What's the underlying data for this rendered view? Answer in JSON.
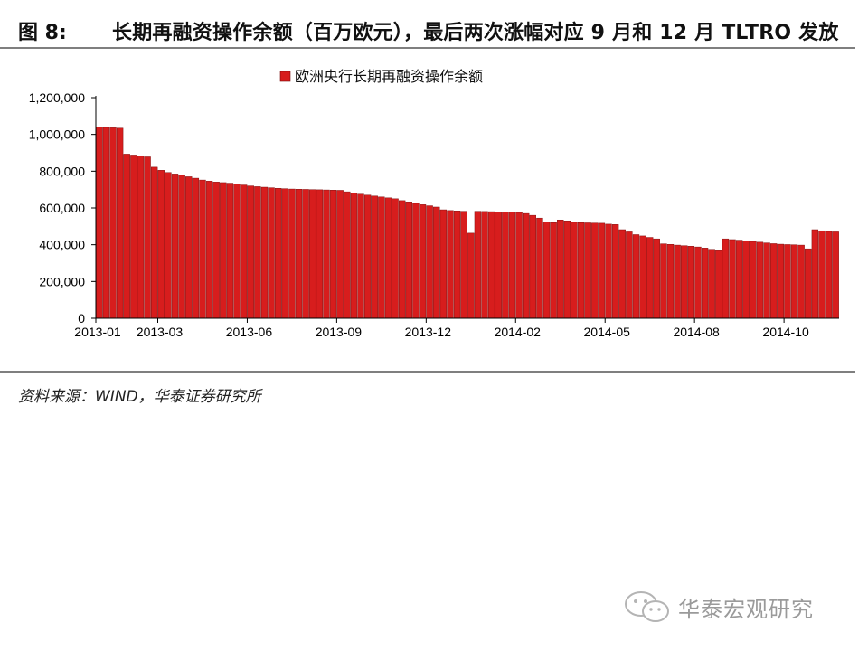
{
  "header": {
    "figure_label": "图 8:",
    "title": "长期再融资操作余额（百万欧元），最后两次涨幅对应 9 月和 12 月 TLTRO 发放"
  },
  "source_note": "资料来源：WIND，华泰证券研究所",
  "watermark": {
    "text": "华泰宏观研究",
    "icon": "wechat-icon"
  },
  "colors": {
    "bar": "#d71d1d",
    "bar_edge": "#7a0a0a",
    "axis": "#000000",
    "rule": "#7f7f7f"
  },
  "chart_data": {
    "type": "bar",
    "title": "",
    "xlabel": "",
    "ylabel": "",
    "legend": {
      "placement": "top-center"
    },
    "grid": false,
    "ylim": [
      0,
      1200000
    ],
    "yticks": [
      0,
      200000,
      400000,
      600000,
      800000,
      1000000,
      1200000
    ],
    "ytick_labels": [
      "0",
      "200,000",
      "400,000",
      "600,000",
      "800,000",
      "1,000,000",
      "1,200,000"
    ],
    "x_tick_labels": [
      {
        "label": "2013-01",
        "index": 0
      },
      {
        "label": "2013-03",
        "index": 9
      },
      {
        "label": "2013-06",
        "index": 22
      },
      {
        "label": "2013-09",
        "index": 35
      },
      {
        "label": "2013-12",
        "index": 48
      },
      {
        "label": "2014-02",
        "index": 61
      },
      {
        "label": "2014-05",
        "index": 74
      },
      {
        "label": "2014-08",
        "index": 87
      },
      {
        "label": "2014-10",
        "index": 100
      }
    ],
    "series": [
      {
        "name": "欧洲央行长期再融资操作余额",
        "values": [
          1040000,
          1038000,
          1036000,
          1034000,
          893000,
          888000,
          882000,
          878000,
          822000,
          805000,
          793000,
          785000,
          778000,
          770000,
          762000,
          752000,
          746000,
          741000,
          738000,
          735000,
          730000,
          725000,
          720000,
          716000,
          713000,
          710000,
          707000,
          705000,
          703000,
          702000,
          701000,
          700000,
          699000,
          698000,
          697000,
          696000,
          688000,
          680000,
          675000,
          670000,
          665000,
          660000,
          655000,
          650000,
          640000,
          633000,
          625000,
          618000,
          612000,
          605000,
          590000,
          586000,
          584000,
          582000,
          463000,
          582000,
          581000,
          580000,
          579000,
          578000,
          577000,
          575000,
          570000,
          560000,
          545000,
          525000,
          520000,
          535000,
          530000,
          522000,
          520000,
          519000,
          518000,
          517000,
          512000,
          510000,
          482000,
          470000,
          455000,
          448000,
          440000,
          432000,
          405000,
          402000,
          398000,
          395000,
          392000,
          388000,
          382000,
          375000,
          368000,
          432000,
          428000,
          425000,
          421000,
          418000,
          414000,
          410000,
          406000,
          403000,
          401000,
          400000,
          398000,
          378000,
          482000,
          476000,
          472000,
          470000
        ]
      }
    ]
  }
}
